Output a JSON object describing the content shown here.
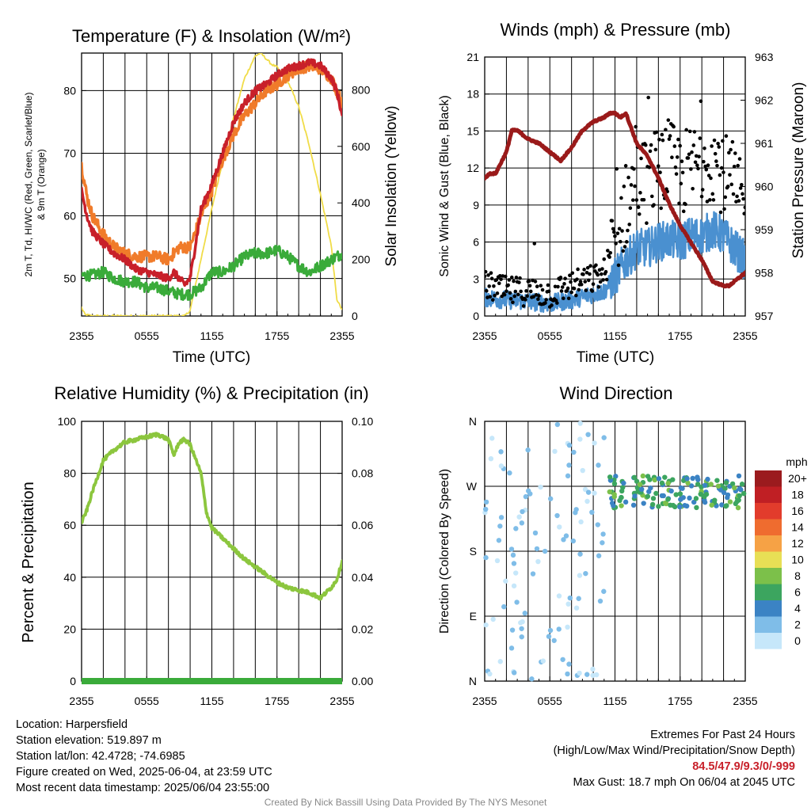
{
  "charts": {
    "temperature": {
      "title": "Temperature (F) & Insolation (W/m²)",
      "xlabel": "Time (UTC)",
      "ylabel_left_1": "2m T, Td, HI/WC (Red, Green, Scarlet/Blue)",
      "ylabel_left_2": "& 9m T (Orange)",
      "ylabel_right": "Solar Insolation (Yellow)"
    },
    "winds": {
      "title": "Winds (mph) & Pressure (mb)",
      "xlabel": "Time (UTC)",
      "ylabel_left": "Sonic Wind & Gust (Blue, Black)",
      "ylabel_right": "Station Pressure (Maroon)"
    },
    "humidity": {
      "title": "Relative Humidity (%) & Precipitation (in)",
      "ylabel_left": "Percent & Precipitation"
    },
    "direction": {
      "title": "Wind Direction",
      "ylabel_left": "Direction (Colored By Speed)",
      "colorbar_title": "mph"
    }
  },
  "chart_data": [
    {
      "id": "temperature",
      "type": "line",
      "x_ticks": [
        "2355",
        "0555",
        "1155",
        "1755",
        "2355"
      ],
      "xlim_hours": [
        0,
        24
      ],
      "ylim_left": [
        44,
        86
      ],
      "yticks_left": [
        50,
        60,
        70,
        80
      ],
      "ylim_right": [
        0,
        930
      ],
      "yticks_right": [
        0,
        200,
        400,
        600,
        800
      ],
      "grid": true,
      "series": [
        {
          "name": "9m T",
          "axis": "left",
          "color": "#f07b2a",
          "x": [
            0,
            0.5,
            1,
            2,
            3,
            4,
            5,
            6,
            7,
            8,
            8.5,
            9,
            9.5,
            10,
            11,
            12,
            13,
            14,
            15,
            16,
            17,
            18,
            19,
            20,
            21,
            22,
            23,
            23.5,
            24
          ],
          "values": [
            68,
            63,
            60,
            57,
            55,
            54,
            53.5,
            53.5,
            53.5,
            53,
            54,
            55,
            55,
            55,
            60,
            64,
            69,
            73,
            76,
            78,
            80,
            81,
            82.5,
            83.5,
            84,
            83.5,
            82,
            80,
            78
          ]
        },
        {
          "name": "2m T",
          "axis": "left",
          "color": "#c8202a",
          "x": [
            0,
            0.5,
            1,
            2,
            3,
            4,
            5,
            6,
            7,
            8,
            8.5,
            9,
            9.5,
            10,
            11,
            12,
            13,
            14,
            15,
            16,
            17,
            18,
            19,
            20,
            21,
            22,
            23,
            23.5,
            24
          ],
          "values": [
            64,
            60,
            57.5,
            55.5,
            54,
            53,
            51.5,
            51,
            50.5,
            50,
            51,
            50,
            49,
            50,
            61,
            65,
            70,
            75,
            78,
            80,
            81,
            82.5,
            83.5,
            84,
            84.5,
            84,
            82,
            80,
            76
          ]
        },
        {
          "name": "Td",
          "axis": "left",
          "color": "#3aab3a",
          "x": [
            0,
            1,
            2,
            3,
            4,
            5,
            6,
            7,
            8,
            9,
            10,
            11,
            12,
            13,
            14,
            15,
            16,
            17,
            18,
            19,
            20,
            21,
            22,
            23,
            24
          ],
          "values": [
            50.5,
            50.5,
            51,
            50,
            49.5,
            49.5,
            48.5,
            48.5,
            48,
            47.5,
            47.5,
            48.5,
            51,
            51,
            52,
            53.5,
            54,
            54,
            54.5,
            53.5,
            52,
            51,
            52,
            53,
            54
          ]
        },
        {
          "name": "Insolation",
          "axis": "right",
          "color": "#f0dc48",
          "x": [
            0,
            0.3,
            1,
            3,
            5,
            7,
            8,
            9,
            9.5,
            10,
            11,
            12,
            13,
            14,
            15,
            15.5,
            16,
            16.5,
            17,
            17.5,
            18,
            19,
            20,
            21,
            22,
            23,
            23.5,
            24
          ],
          "values": [
            30,
            5,
            0,
            0,
            0,
            0,
            0,
            0,
            0,
            20,
            200,
            380,
            550,
            700,
            840,
            880,
            920,
            930,
            910,
            890,
            880,
            830,
            740,
            600,
            430,
            250,
            60,
            20
          ]
        }
      ]
    },
    {
      "id": "winds",
      "type": "line",
      "x_ticks": [
        "2355",
        "0555",
        "1155",
        "1755",
        "2355"
      ],
      "ylim_left": [
        0,
        21
      ],
      "yticks_left": [
        0,
        3,
        6,
        9,
        12,
        15,
        18,
        21
      ],
      "ylim_right": [
        957,
        963
      ],
      "yticks_right": [
        957,
        958,
        959,
        960,
        961,
        962,
        963
      ],
      "grid": true,
      "series": [
        {
          "name": "Sonic Wind",
          "axis": "left",
          "color": "#4a90d0",
          "x": [
            0,
            2,
            4,
            6,
            8,
            10,
            11,
            12,
            13,
            14,
            15,
            16,
            17,
            18,
            19,
            20,
            21,
            22,
            23,
            24
          ],
          "values": [
            1.5,
            1.3,
            1.2,
            1.0,
            1.3,
            1.8,
            2.0,
            3.2,
            4.5,
            5.5,
            5.5,
            6.0,
            6.2,
            6.0,
            6.5,
            6.5,
            7.0,
            6.5,
            5.5,
            4.5
          ]
        },
        {
          "name": "Gust",
          "axis": "left",
          "color": "#000000",
          "x": [
            0,
            2,
            4,
            6,
            8,
            10,
            11,
            12,
            13,
            14,
            15,
            16,
            17,
            18,
            19,
            20,
            21,
            22,
            23,
            24
          ],
          "values": [
            2.5,
            2.0,
            2.0,
            1.8,
            2.5,
            3.0,
            3.5,
            6.0,
            9.0,
            11.0,
            11.0,
            12.0,
            12.5,
            11.5,
            12.0,
            12.5,
            13.0,
            11.5,
            10.5,
            8.0
          ]
        },
        {
          "name": "Pressure",
          "axis": "right",
          "color": "#9a1a1a",
          "x": [
            0,
            0.5,
            1,
            2,
            2.5,
            3,
            3.5,
            4,
            5,
            6,
            7,
            8,
            9,
            10,
            11,
            11.5,
            12,
            12.5,
            13,
            14,
            15,
            16,
            17,
            18,
            19,
            20,
            21,
            22,
            22.5,
            23,
            24
          ],
          "values": [
            960.2,
            960.3,
            960.3,
            960.8,
            961.3,
            961.3,
            961.2,
            961.1,
            961.0,
            960.8,
            960.6,
            960.9,
            961.3,
            961.5,
            961.6,
            961.7,
            961.7,
            961.6,
            961.7,
            961.0,
            960.7,
            960.2,
            959.6,
            959.1,
            958.7,
            958.3,
            957.8,
            957.7,
            957.7,
            957.8,
            958.0
          ]
        }
      ]
    },
    {
      "id": "humidity",
      "type": "line",
      "x_ticks": [
        "2355",
        "0555",
        "1155",
        "1755",
        "2355"
      ],
      "ylim_left": [
        0,
        100
      ],
      "yticks_left": [
        0,
        20,
        40,
        60,
        80,
        100
      ],
      "ylim_right": [
        0,
        0.1
      ],
      "yticks_right": [
        "0.00",
        "0.02",
        "0.04",
        "0.06",
        "0.08",
        "0.10"
      ],
      "grid": true,
      "series": [
        {
          "name": "RH",
          "axis": "left",
          "color": "#8cc63e",
          "x": [
            0,
            0.5,
            1,
            1.5,
            2,
            3,
            4,
            5,
            6,
            7,
            7.5,
            8,
            8.5,
            9,
            9.5,
            10,
            11,
            11.5,
            12,
            13,
            14,
            15,
            16,
            17,
            18,
            19,
            20,
            21,
            22,
            23,
            23.5,
            24
          ],
          "values": [
            61,
            66,
            73,
            79,
            85,
            89,
            92,
            93,
            94,
            95,
            94,
            93,
            87,
            92,
            93,
            91,
            80,
            65,
            59,
            55,
            51,
            47,
            44,
            41,
            38,
            36,
            35,
            34,
            32,
            36,
            39,
            46
          ]
        },
        {
          "name": "Precipitation",
          "axis": "right",
          "color": "#3aab3a",
          "x": [
            0,
            24
          ],
          "values": [
            0,
            0
          ]
        }
      ]
    },
    {
      "id": "direction",
      "type": "scatter",
      "x_ticks": [
        "2355",
        "0555",
        "1155",
        "1755",
        "2355"
      ],
      "yticks": [
        "N",
        "E",
        "S",
        "W",
        "N"
      ],
      "ylim_deg": [
        0,
        360
      ],
      "color_scale": {
        "labels": [
          "0",
          "2",
          "4",
          "6",
          "8",
          "10",
          "12",
          "14",
          "16",
          "18",
          "20+"
        ],
        "colors": [
          "#c6e7fa",
          "#7fbde8",
          "#3b83c4",
          "#3ca55f",
          "#7cc04a",
          "#e8df55",
          "#f6a245",
          "#ef6c2f",
          "#e23c2c",
          "#c01f24",
          "#9b1b1e"
        ]
      },
      "clusters": [
        {
          "x_range": [
            0,
            11
          ],
          "deg_range": [
            0,
            360
          ],
          "speed_range": [
            0,
            3
          ],
          "count": 110
        },
        {
          "x_range": [
            11.5,
            24
          ],
          "deg_range": [
            240,
            285
          ],
          "speed_range": [
            3,
            8
          ],
          "count": 150
        }
      ]
    }
  ],
  "info_left": [
    "Location: Harpersfield",
    "Station elevation: 519.897 m",
    "Station lat/lon: 42.4728; -74.6985",
    "Figure created on Wed, 2025-06-04, at 23:59 UTC",
    "Most recent data timestamp: 2025/06/04 23:55:00"
  ],
  "info_right": {
    "line1": "Extremes For Past 24 Hours",
    "line2": "(High/Low/Max Wind/Precipitation/Snow Depth)",
    "extremes": "84.5/47.9/9.3/0/-999",
    "gust": "Max Gust: 18.7 mph On 06/04 at 2045 UTC"
  },
  "credit": "Created By Nick Bassill Using Data Provided By The NYS Mesonet"
}
